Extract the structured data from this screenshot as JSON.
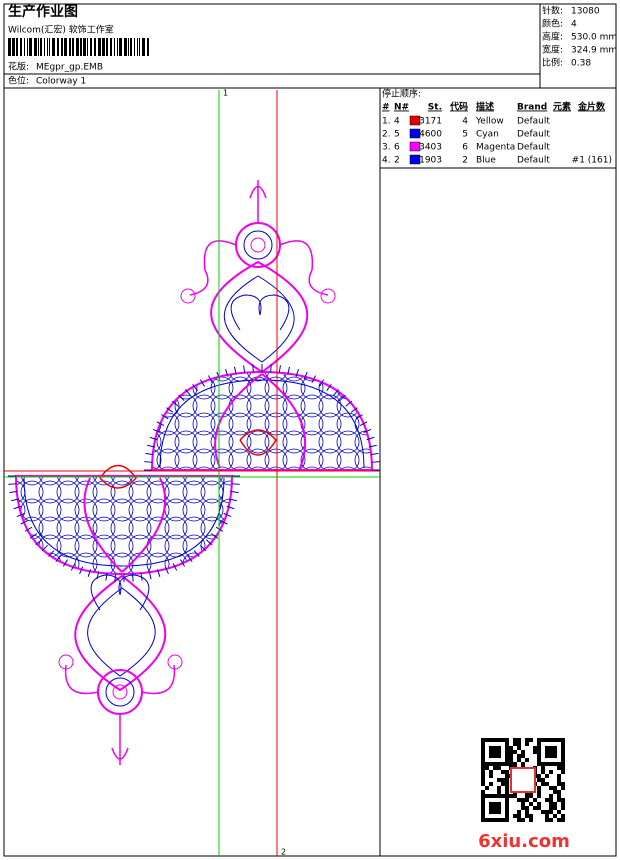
{
  "header": {
    "title": "生产作业图",
    "company": "Wilcom(汇宏) 软饰工作室",
    "design_label": "花版:",
    "design": "MEgpr_gp.EMB",
    "colorway_label": "色位:",
    "colorway": "Colorway 1"
  },
  "stats": [
    {
      "label": "针数:",
      "value": "13080"
    },
    {
      "label": "颜色:",
      "value": "4"
    },
    {
      "label": "高度:",
      "value": "530.0 mm"
    },
    {
      "label": "宽度:",
      "value": "324.9 mm"
    },
    {
      "label": "比例:",
      "value": "0.38"
    }
  ],
  "stop_sequence": {
    "title": "停止顺序:",
    "columns": [
      "#",
      "N#",
      "St.",
      "代码",
      "描述",
      "Brand",
      "元素",
      "金片数"
    ],
    "rows": [
      {
        "index": "1.",
        "needle": "4",
        "swatch": "#e00000",
        "stitches": "3171",
        "code": "4",
        "description": "Yellow",
        "brand": "Default"
      },
      {
        "index": "2.",
        "needle": "5",
        "swatch": "#0000ee",
        "stitches": "4600",
        "code": "5",
        "description": "Cyan",
        "brand": "Default"
      },
      {
        "index": "3.",
        "needle": "6",
        "swatch": "#ff00ff",
        "stitches": "3403",
        "code": "6",
        "description": "Magenta",
        "brand": "Default"
      },
      {
        "index": "4.",
        "needle": "2",
        "swatch": "#0000ee",
        "stitches": "1903",
        "code": "2",
        "description": "Blue",
        "brand": "Default",
        "sequins": "#1 (161)"
      }
    ]
  },
  "guides": {
    "vertical_label": "1",
    "horizontal_label": "2"
  },
  "watermark": "6xiu.com"
}
